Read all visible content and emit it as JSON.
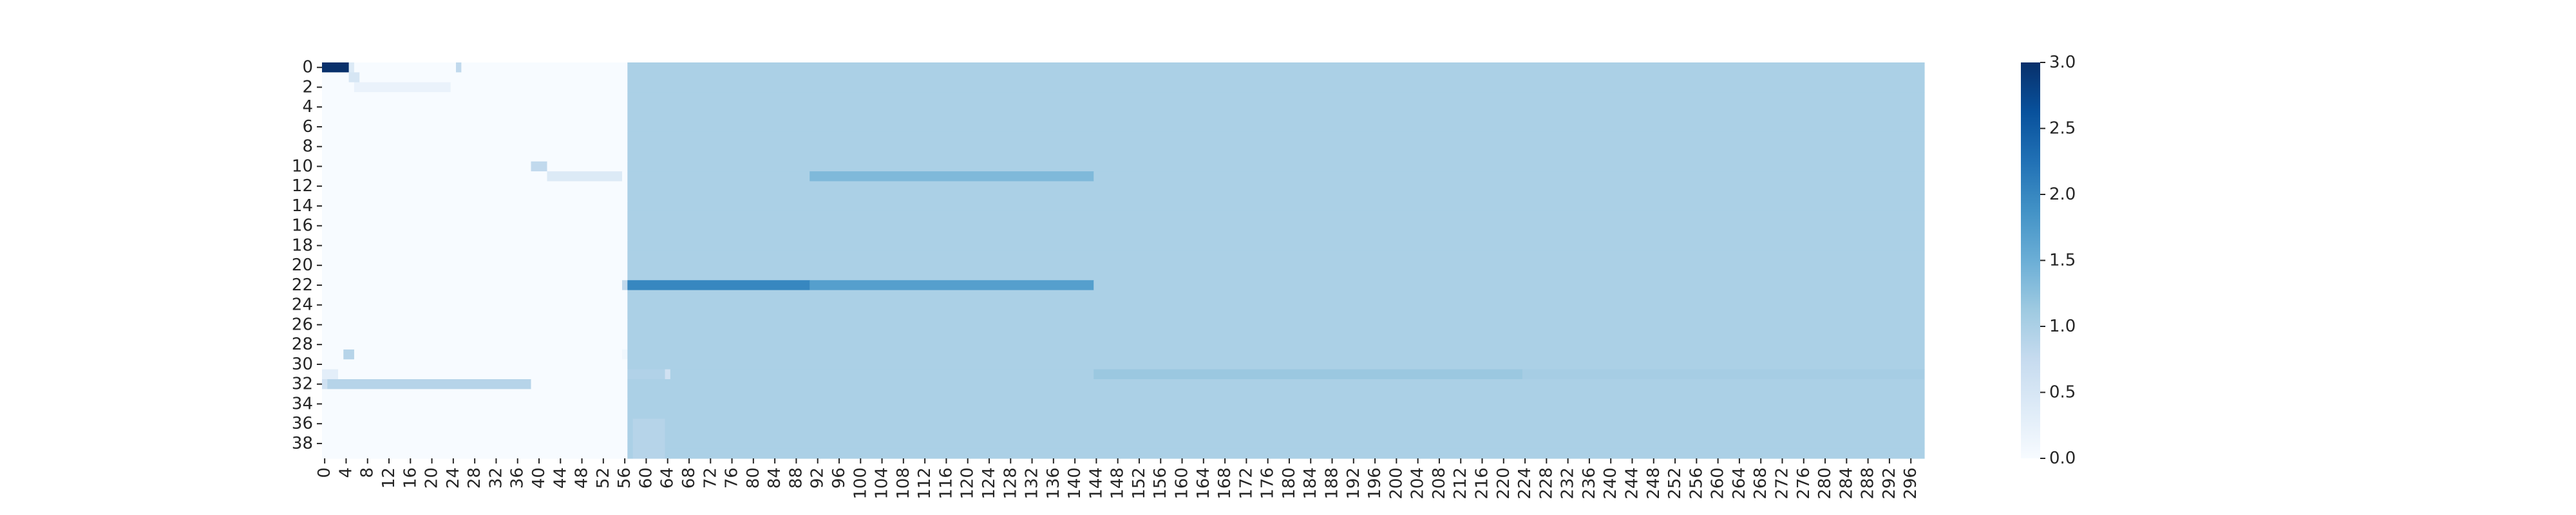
{
  "chart_data": {
    "type": "heatmap",
    "title": "",
    "xlabel": "",
    "ylabel": "",
    "n_rows": 40,
    "n_cols": 299,
    "x_tick_labels": [
      "0",
      "4",
      "8",
      "12",
      "16",
      "20",
      "24",
      "28",
      "32",
      "36",
      "40",
      "44",
      "48",
      "52",
      "56",
      "60",
      "64",
      "68",
      "72",
      "76",
      "80",
      "84",
      "88",
      "92",
      "96",
      "100",
      "104",
      "108",
      "112",
      "116",
      "120",
      "124",
      "128",
      "132",
      "136",
      "140",
      "144",
      "148",
      "152",
      "156",
      "160",
      "164",
      "168",
      "172",
      "176",
      "180",
      "184",
      "188",
      "192",
      "196",
      "200",
      "204",
      "208",
      "212",
      "216",
      "220",
      "224",
      "228",
      "232",
      "236",
      "240",
      "244",
      "248",
      "252",
      "256",
      "260",
      "264",
      "268",
      "272",
      "276",
      "280",
      "284",
      "288",
      "292",
      "296"
    ],
    "y_tick_labels": [
      "0",
      "2",
      "4",
      "6",
      "8",
      "10",
      "12",
      "14",
      "16",
      "18",
      "20",
      "22",
      "24",
      "26",
      "28",
      "30",
      "32",
      "34",
      "36",
      "38"
    ],
    "colormap": "Blues",
    "color_min_hex": "#f7fbff",
    "color_max_hex": "#08306b",
    "vmin": 0,
    "vmax": 3,
    "colorbar_ticks": [
      "0.0",
      "0.5",
      "1.0",
      "1.5",
      "2.0",
      "2.5",
      "3.0"
    ],
    "base_value": 1.0,
    "baseline_start_col": 57,
    "regions": [
      {
        "rows": [
          0,
          0
        ],
        "cols": [
          0,
          4
        ],
        "value": 3.0
      },
      {
        "rows": [
          0,
          0
        ],
        "cols": [
          5,
          5
        ],
        "value": 0.4
      },
      {
        "rows": [
          0,
          0
        ],
        "cols": [
          25,
          25
        ],
        "value": 0.8
      },
      {
        "rows": [
          1,
          1
        ],
        "cols": [
          5,
          6
        ],
        "value": 0.5
      },
      {
        "rows": [
          2,
          2
        ],
        "cols": [
          6,
          23
        ],
        "value": 0.2
      },
      {
        "rows": [
          10,
          10
        ],
        "cols": [
          39,
          41
        ],
        "value": 0.8
      },
      {
        "rows": [
          11,
          11
        ],
        "cols": [
          42,
          55
        ],
        "value": 0.4
      },
      {
        "rows": [
          11,
          11
        ],
        "cols": [
          91,
          143
        ],
        "value": 1.35
      },
      {
        "rows": [
          22,
          22
        ],
        "cols": [
          56,
          56
        ],
        "value": 0.8
      },
      {
        "rows": [
          22,
          22
        ],
        "cols": [
          57,
          90
        ],
        "value": 2.0
      },
      {
        "rows": [
          22,
          22
        ],
        "cols": [
          91,
          143
        ],
        "value": 1.7
      },
      {
        "rows": [
          29,
          29
        ],
        "cols": [
          4,
          5
        ],
        "value": 0.9
      },
      {
        "rows": [
          29,
          29
        ],
        "cols": [
          56,
          56
        ],
        "value": 0.1
      },
      {
        "rows": [
          31,
          31
        ],
        "cols": [
          0,
          2
        ],
        "value": 0.3
      },
      {
        "rows": [
          31,
          31
        ],
        "cols": [
          57,
          63
        ],
        "value": 0.95
      },
      {
        "rows": [
          31,
          31
        ],
        "cols": [
          64,
          64
        ],
        "value": 0.6
      },
      {
        "rows": [
          31,
          31
        ],
        "cols": [
          144,
          223
        ],
        "value": 1.15
      },
      {
        "rows": [
          31,
          31
        ],
        "cols": [
          224,
          298
        ],
        "value": 1.05
      },
      {
        "rows": [
          32,
          32
        ],
        "cols": [
          0,
          38
        ],
        "value": 0.9
      },
      {
        "rows": [
          32,
          32
        ],
        "cols": [
          0,
          0
        ],
        "value": 0.6
      },
      {
        "rows": [
          36,
          39
        ],
        "cols": [
          58,
          63
        ],
        "value": 0.9
      }
    ]
  }
}
